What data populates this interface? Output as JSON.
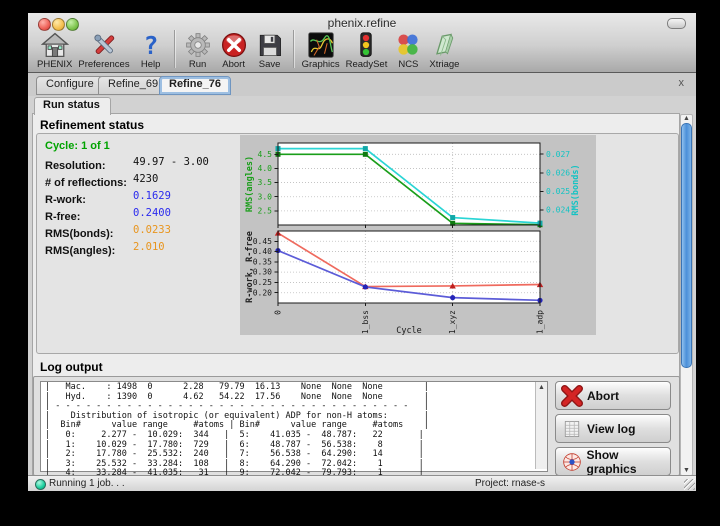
{
  "window": {
    "title": "phenix.refine"
  },
  "toolbar": {
    "items": [
      {
        "label": "PHENIX",
        "icon": "home-icon"
      },
      {
        "label": "Preferences",
        "icon": "tools-icon"
      },
      {
        "label": "Help",
        "icon": "question-icon"
      },
      {
        "label": "Run",
        "icon": "gear-icon"
      },
      {
        "label": "Abort",
        "icon": "abort-circle-icon"
      },
      {
        "label": "Save",
        "icon": "floppy-icon"
      },
      {
        "label": "Graphics",
        "icon": "density-map-icon"
      },
      {
        "label": "ReadySet",
        "icon": "traffic-light-icon"
      },
      {
        "label": "NCS",
        "icon": "molecule-icon"
      },
      {
        "label": "Xtriage",
        "icon": "crystal-icon"
      }
    ]
  },
  "tabs": {
    "items": [
      {
        "label": "Configure"
      },
      {
        "label": "Refine_69"
      },
      {
        "label": "Refine_76"
      }
    ],
    "selected": "Refine_76",
    "close_icon": "x"
  },
  "notebook": {
    "tab": "Run status"
  },
  "refinement": {
    "heading": "Refinement status",
    "cycle": "Cycle: 1 of 1",
    "rows": [
      {
        "label": "Resolution:",
        "value": "49.97 - 3.00",
        "color": "#111111"
      },
      {
        "label": "# of reflections:",
        "value": "4230",
        "color": "#111111"
      },
      {
        "label": "R-work:",
        "value": "0.1629",
        "color": "#2a2aee"
      },
      {
        "label": "R-free:",
        "value": "0.2400",
        "color": "#2a2aee"
      },
      {
        "label": "RMS(bonds):",
        "value": "0.0233",
        "color": "#e8951e"
      },
      {
        "label": "RMS(angles):",
        "value": "2.010",
        "color": "#e8951e"
      }
    ]
  },
  "chart_data": {
    "type": "line",
    "xlabel": "Cycle",
    "x_categories": [
      "0",
      "1_bss",
      "1_xyz",
      "1_adp"
    ],
    "grid": "dotted",
    "subplots": [
      {
        "ylabel": "RMS(angles)",
        "ylabel_color": "#1a9e1a",
        "ylim": [
          2.0,
          4.9
        ],
        "yticks": [
          "2.5",
          "3.0",
          "3.5",
          "4.0",
          "4.5"
        ],
        "right_ylabel": "RMS(bonds)",
        "right_color": "#12c3c3",
        "right_ylim": [
          0.0232,
          0.0276
        ],
        "right_yticks": [
          "0.024",
          "0.025",
          "0.026",
          "0.027"
        ],
        "series": [
          {
            "name": "RMS(angles)",
            "axis": "left",
            "color": "#1a9e1a",
            "marker": "square",
            "marker_color": "#0f7a0f",
            "values": [
              4.5,
              4.5,
              2.06,
              2.01
            ]
          },
          {
            "name": "RMS(bonds)",
            "axis": "right",
            "color": "#2ad5d5",
            "marker": "square",
            "marker_color": "#10a8a8",
            "values": [
              0.0273,
              0.0273,
              0.0236,
              0.0233
            ]
          }
        ]
      },
      {
        "ylabel": "R-work, R-free",
        "ylabel_color": "#222222",
        "ylim": [
          0.15,
          0.5
        ],
        "yticks": [
          "0.20",
          "0.25",
          "0.30",
          "0.35",
          "0.40",
          "0.45"
        ],
        "series": [
          {
            "name": "R-free",
            "axis": "left",
            "color": "#ef6a5e",
            "marker": "triangle",
            "marker_color": "#bf1f1f",
            "values": [
              0.49,
              0.23,
              0.233,
              0.24
            ]
          },
          {
            "name": "R-work",
            "axis": "left",
            "color": "#5c5cd8",
            "marker": "circle",
            "marker_color": "#2424b8",
            "values": [
              0.405,
              0.228,
              0.176,
              0.163
            ]
          }
        ]
      }
    ]
  },
  "log": {
    "heading": "Log output",
    "lines": [
      "|   Mac.    : 1498  0      2.28   79.79  16.13    None  None  None        |",
      "|   Hyd.    : 1390  0      4.62   54.22  17.56    None  None  None        |",
      "| - - - - - - - - - - - - - - - - - - - - - - - - - - - - - - - - - - -   |",
      "|    Distribution of isotropic (or equivalent) ADP for non-H atoms:       |",
      "|  Bin#      value range     #atoms | Bin#      value range     #atoms    |",
      "|   0:     2.277 -  10.029:  344   |  5:    41.035 -  48.787:   22       |",
      "|   1:    10.029 -  17.780:  729   |  6:    48.787 -  56.538:    8       |",
      "|   2:    17.780 -  25.532:  240   |  7:    56.538 -  64.290:   14       |",
      "|   3:    25.532 -  33.284:  108   |  8:    64.290 -  72.042:    1       |",
      "|   4:    33.284 -  41.035:   31   |  9:    72.042 -  79.793:    1       |"
    ]
  },
  "actions": [
    {
      "label": "Abort",
      "icon": "abort-x-icon"
    },
    {
      "label": "View log",
      "icon": "log-document-icon"
    },
    {
      "label": "Show graphics",
      "icon": "graphics-sphere-icon"
    }
  ],
  "statusbar": {
    "status": "Running 1 job. . .",
    "project": "Project: rnase-s"
  }
}
